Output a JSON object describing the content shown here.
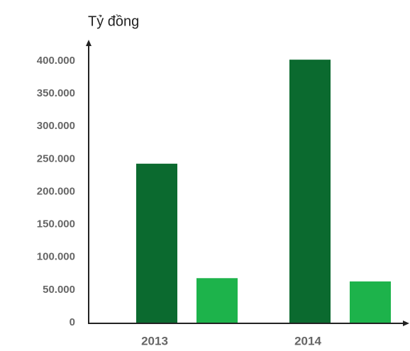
{
  "chart_data": {
    "type": "bar",
    "y_label": "Tỷ đồng",
    "categories": [
      "2013",
      "2014"
    ],
    "series": [
      {
        "color": "#0b6a2f",
        "values": [
          243000,
          402000
        ]
      },
      {
        "color": "#1db34b",
        "values": [
          68000,
          63000
        ]
      }
    ],
    "ylim": [
      0,
      400000
    ],
    "yticks": [
      0,
      {
        "value": 50000,
        "label": "50.000"
      },
      {
        "value": 100000,
        "label": "100.000"
      },
      {
        "value": 150000,
        "label": "150.000"
      },
      {
        "value": 200000,
        "label": "200.000"
      },
      {
        "value": 250000,
        "label": "250.000"
      },
      {
        "value": 300000,
        "label": "300.000"
      },
      {
        "value": 350000,
        "label": "350.000"
      },
      {
        "value": 400000,
        "label": "400.000"
      }
    ],
    "grid": false
  }
}
